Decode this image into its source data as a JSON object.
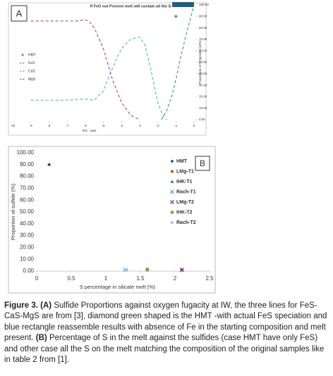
{
  "chart_data": [
    {
      "type": "line",
      "panel_label": "A",
      "annotation": "If FeO not Present melt will contain all the S",
      "x_label": "fO2 - ΔIW",
      "y_label": "Proportions of S Species (wt%)",
      "y_axis_side": "right",
      "xlim": [
        -10,
        0
      ],
      "xticks": [
        -10,
        -9,
        -8,
        -7,
        -6,
        -5,
        -4,
        -3,
        -2,
        -1,
        0
      ],
      "ylim": [
        0,
        100
      ],
      "yticks": [
        {
          "value": 0,
          "label": "0.00"
        },
        {
          "value": 10,
          "label": "10.00"
        },
        {
          "value": 20,
          "label": "20.00"
        },
        {
          "value": 30,
          "label": "30.00"
        },
        {
          "value": 40,
          "label": "40.00"
        },
        {
          "value": 50,
          "label": "50.00"
        },
        {
          "value": 60,
          "label": "60.00"
        },
        {
          "value": 70,
          "label": "70.00"
        },
        {
          "value": 80,
          "label": "80.00"
        },
        {
          "value": 90,
          "label": "90.00"
        },
        {
          "value": 100,
          "label": "100.00"
        }
      ],
      "legend": "left",
      "points": [
        {
          "name": "HMT",
          "color": "#4caf50",
          "x": -1,
          "y": 90
        }
      ],
      "series": [
        {
          "name": "FeS",
          "color": "#4ca64c",
          "x": [
            -1.8,
            -1.5,
            -1.2,
            -1,
            -0.8,
            -0.5,
            -0.2,
            0
          ],
          "values": [
            0,
            8,
            22,
            35,
            50,
            70,
            88,
            100
          ]
        },
        {
          "name": "CaS",
          "color": "#5bb8d8",
          "x": [
            -9,
            -8,
            -7,
            -6,
            -5.5,
            -5,
            -4.5,
            -4,
            -3.5,
            -3,
            -2.7,
            -2.4,
            -2,
            -1.7,
            -1.5
          ],
          "values": [
            17,
            17,
            17,
            18,
            17,
            25,
            45,
            62,
            70,
            72,
            65,
            45,
            15,
            3,
            0
          ]
        },
        {
          "name": "MgS",
          "color": "#b04fa0",
          "x": [
            -9,
            -8,
            -7,
            -6.5,
            -6,
            -5.8,
            -5.5,
            -5,
            -4.5,
            -4,
            -3.5,
            -3
          ],
          "values": [
            86,
            86,
            86,
            86,
            87,
            86,
            80,
            62,
            35,
            15,
            4,
            0
          ]
        }
      ],
      "highlight": {
        "x": [
          -1.2,
          0
        ],
        "color": "#1f5c8b"
      }
    },
    {
      "type": "scatter",
      "panel_label": "B",
      "x_label": "S percentage in silicate melt (%)",
      "y_label": "Proportion of sulfide (%)",
      "xlim": [
        0,
        2.5
      ],
      "xticks": [
        0,
        0.5,
        1,
        1.5,
        2,
        2.5
      ],
      "ylim": [
        0,
        100
      ],
      "yticks": [
        {
          "value": 0,
          "label": "0.00"
        },
        {
          "value": 10,
          "label": "10.00"
        },
        {
          "value": 20,
          "label": "20.00"
        },
        {
          "value": 30,
          "label": "30.00"
        },
        {
          "value": 40,
          "label": "40.00"
        },
        {
          "value": 50,
          "label": "50.00"
        },
        {
          "value": 60,
          "label": "60.00"
        },
        {
          "value": 70,
          "label": "70.00"
        },
        {
          "value": 80,
          "label": "80.00"
        },
        {
          "value": 90,
          "label": "90.00"
        },
        {
          "value": 100,
          "label": "100.00"
        }
      ],
      "legend": "top-right",
      "series": [
        {
          "name": "HMT",
          "color": "#1f4e79",
          "marker": "diamond",
          "x": [
            0.18
          ],
          "values": [
            90
          ]
        },
        {
          "name": "LMg-T1",
          "color": "#c55a11",
          "marker": "square",
          "x": [
            2.1
          ],
          "values": [
            1
          ]
        },
        {
          "name": "IHK-T1",
          "color": "#2e7d32",
          "marker": "triangle",
          "x": [
            1.6
          ],
          "values": [
            1
          ]
        },
        {
          "name": "Rach-T1",
          "color": "#5b9bd5",
          "marker": "x",
          "x": [
            1.28
          ],
          "values": [
            1
          ]
        },
        {
          "name": "LMg-T2",
          "color": "#7030a0",
          "marker": "x",
          "x": [
            2.1
          ],
          "values": [
            1
          ]
        },
        {
          "name": "IHK-T2",
          "color": "#70ad47",
          "marker": "circle",
          "x": [
            1.6
          ],
          "values": [
            1.5
          ]
        },
        {
          "name": "Rach-T2",
          "color": "#9dc3e6",
          "marker": "star",
          "x": [
            1.3
          ],
          "values": [
            1
          ]
        }
      ]
    }
  ],
  "caption": {
    "label": "Figure 3.",
    "parts": [
      {
        "tag": "(A)",
        "text": "Sulfide Proportions against oxygen fugacity at IW, the three lines for FeS-CaS-MgS are from [3], diamond green shaped is the HMT -with actual FeS speciation and blue rectangle reassemble results with absence of Fe in the starting composition and melt present."
      },
      {
        "tag": "(B)",
        "text": "Percentage of S in the melt against the sulfides (case HMT have only FeS) and other case all the S on the melt matching the composition of the original samples like in table 2 from [1]."
      }
    ]
  }
}
